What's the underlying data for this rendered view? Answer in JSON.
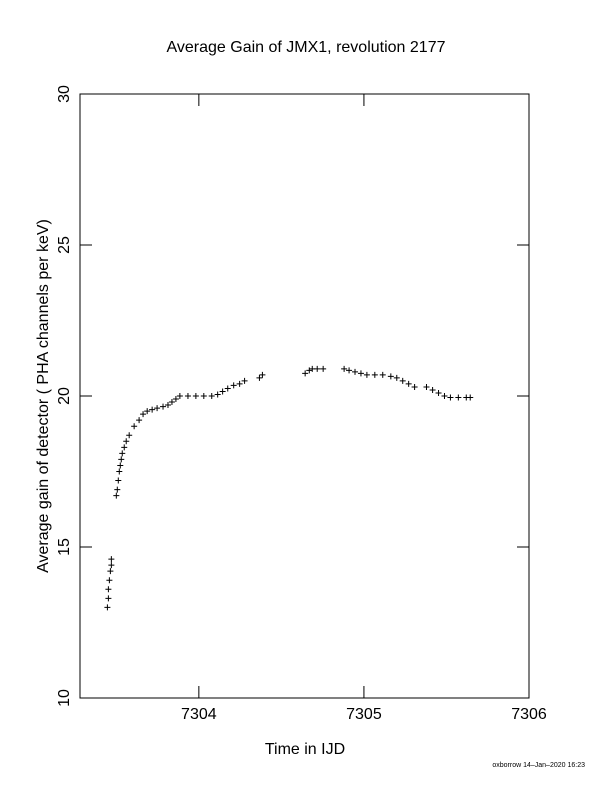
{
  "chart_data": {
    "type": "scatter",
    "title": "Average Gain of JMX1, revolution 2177",
    "x_label": "Time in IJD",
    "y_label": "Average gain of detector ( PHA channels per keV)",
    "footer": "oxborrow 14–Jan–2020 16:23",
    "marker": "+",
    "color": "#000000",
    "xlim": [
      7303.28,
      7306
    ],
    "xticks": [
      7304,
      7305,
      7306
    ],
    "ylim": [
      10,
      30
    ],
    "yticks": [
      10,
      15,
      20,
      25,
      30
    ],
    "x": [
      7303.446,
      7303.452,
      7303.452,
      7303.458,
      7303.464,
      7303.47,
      7303.47,
      7303.5,
      7303.506,
      7303.512,
      7303.518,
      7303.524,
      7303.53,
      7303.536,
      7303.548,
      7303.56,
      7303.578,
      7303.608,
      7303.638,
      7303.662,
      7303.687,
      7303.717,
      7303.747,
      7303.783,
      7303.813,
      7303.837,
      7303.861,
      7303.885,
      7303.934,
      7303.982,
      7304.03,
      7304.078,
      7304.114,
      7304.144,
      7304.175,
      7304.211,
      7304.247,
      7304.277,
      7304.367,
      7304.385,
      7304.644,
      7304.669,
      7304.687,
      7304.717,
      7304.753,
      7304.88,
      7304.91,
      7304.946,
      7304.982,
      7305.018,
      7305.066,
      7305.114,
      7305.163,
      7305.199,
      7305.235,
      7305.271,
      7305.307,
      7305.379,
      7305.416,
      7305.452,
      7305.488,
      7305.524,
      7305.572,
      7305.62,
      7305.644
    ],
    "values": [
      13.0,
      13.3,
      13.6,
      13.9,
      14.2,
      14.4,
      14.6,
      16.7,
      16.9,
      17.2,
      17.5,
      17.7,
      17.9,
      18.1,
      18.3,
      18.5,
      18.7,
      19.0,
      19.2,
      19.4,
      19.5,
      19.55,
      19.6,
      19.65,
      19.7,
      19.8,
      19.9,
      20.0,
      20.0,
      20.0,
      20.0,
      20.0,
      20.05,
      20.15,
      20.25,
      20.35,
      20.4,
      20.5,
      20.6,
      20.7,
      20.75,
      20.85,
      20.9,
      20.9,
      20.9,
      20.9,
      20.85,
      20.8,
      20.75,
      20.7,
      20.7,
      20.7,
      20.65,
      20.6,
      20.5,
      20.4,
      20.3,
      20.3,
      20.2,
      20.1,
      20.0,
      19.95,
      19.95,
      19.95,
      19.95
    ]
  }
}
